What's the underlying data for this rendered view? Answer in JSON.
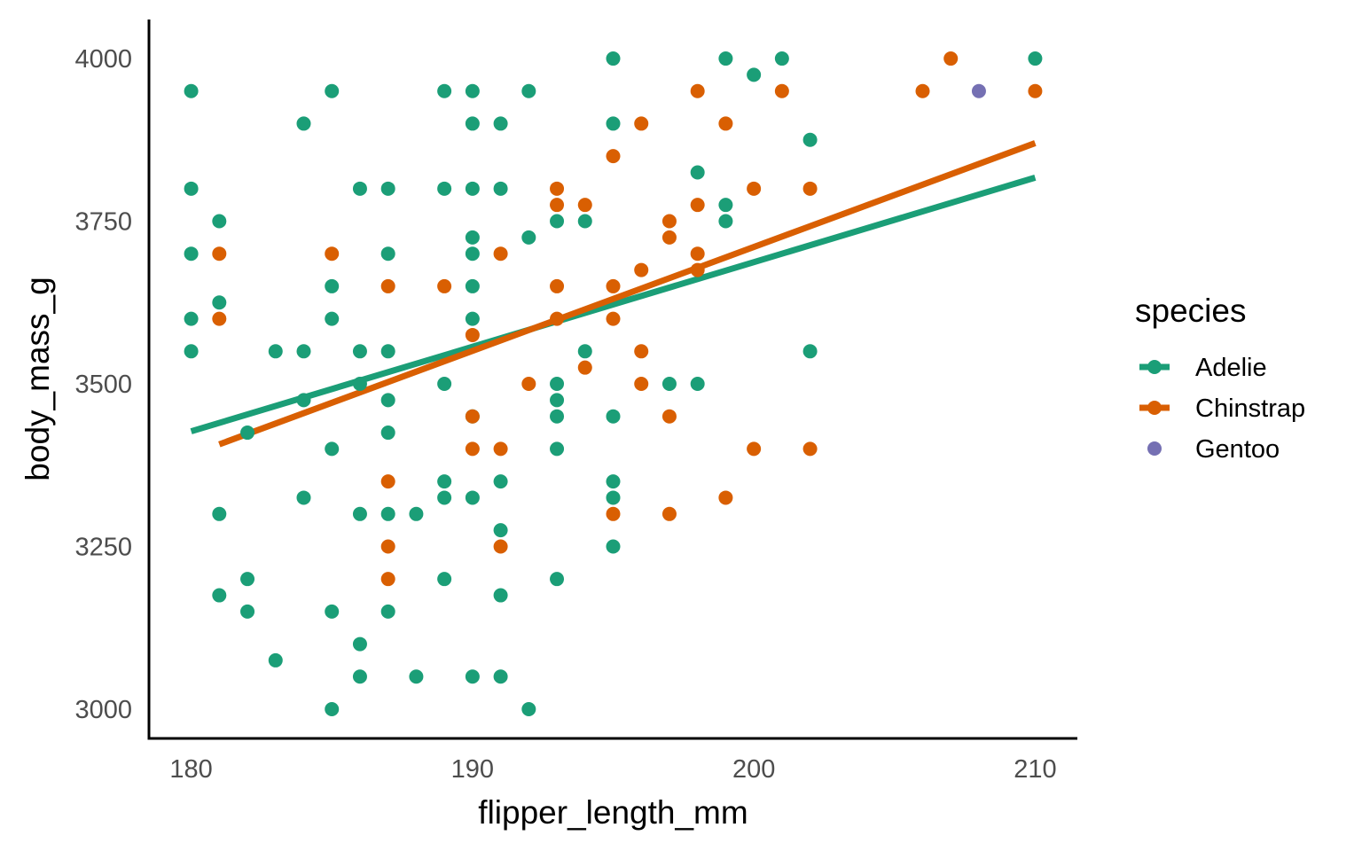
{
  "chart_data": {
    "type": "scatter",
    "xlabel": "flipper_length_mm",
    "ylabel": "body_mass_g",
    "xlim": [
      178.5,
      211.5
    ],
    "ylim": [
      2955,
      4060
    ],
    "x_ticks": [
      180,
      190,
      200,
      210
    ],
    "y_ticks": [
      3000,
      3250,
      3500,
      3750,
      4000
    ],
    "grid": false,
    "legend_position": "right",
    "legend": {
      "title": "species",
      "entries": [
        {
          "name": "Adelie",
          "color": "#1b9e77",
          "line": true
        },
        {
          "name": "Chinstrap",
          "color": "#d95f02",
          "line": true
        },
        {
          "name": "Gentoo",
          "color": "#7570b3",
          "line": false
        }
      ]
    },
    "series": [
      {
        "name": "Adelie",
        "color": "#1b9e77",
        "points": [
          [
            180,
            3950
          ],
          [
            180,
            3800
          ],
          [
            180,
            3700
          ],
          [
            180,
            3600
          ],
          [
            180,
            3550
          ],
          [
            181,
            3750
          ],
          [
            181,
            3625
          ],
          [
            181,
            3300
          ],
          [
            181,
            3175
          ],
          [
            182,
            3425
          ],
          [
            182,
            3200
          ],
          [
            182,
            3150
          ],
          [
            183,
            3550
          ],
          [
            183,
            3075
          ],
          [
            184,
            3900
          ],
          [
            184,
            3550
          ],
          [
            184,
            3475
          ],
          [
            184,
            3325
          ],
          [
            185,
            3950
          ],
          [
            185,
            3650
          ],
          [
            185,
            3600
          ],
          [
            185,
            3400
          ],
          [
            185,
            3150
          ],
          [
            185,
            3000
          ],
          [
            186,
            3800
          ],
          [
            186,
            3550
          ],
          [
            186,
            3500
          ],
          [
            186,
            3300
          ],
          [
            186,
            3100
          ],
          [
            186,
            3050
          ],
          [
            187,
            3800
          ],
          [
            187,
            3700
          ],
          [
            187,
            3550
          ],
          [
            187,
            3475
          ],
          [
            187,
            3425
          ],
          [
            187,
            3300
          ],
          [
            187,
            3150
          ],
          [
            188,
            3300
          ],
          [
            188,
            3050
          ],
          [
            189,
            3950
          ],
          [
            189,
            3800
          ],
          [
            189,
            3500
          ],
          [
            189,
            3350
          ],
          [
            189,
            3325
          ],
          [
            189,
            3200
          ],
          [
            190,
            3950
          ],
          [
            190,
            3900
          ],
          [
            190,
            3800
          ],
          [
            190,
            3725
          ],
          [
            190,
            3700
          ],
          [
            190,
            3650
          ],
          [
            190,
            3600
          ],
          [
            190,
            3450
          ],
          [
            190,
            3325
          ],
          [
            190,
            3050
          ],
          [
            191,
            3900
          ],
          [
            191,
            3800
          ],
          [
            191,
            3350
          ],
          [
            191,
            3275
          ],
          [
            191,
            3175
          ],
          [
            191,
            3050
          ],
          [
            192,
            3950
          ],
          [
            192,
            3725
          ],
          [
            192,
            3000
          ],
          [
            193,
            3750
          ],
          [
            193,
            3500
          ],
          [
            193,
            3475
          ],
          [
            193,
            3450
          ],
          [
            193,
            3400
          ],
          [
            193,
            3200
          ],
          [
            194,
            3750
          ],
          [
            194,
            3550
          ],
          [
            195,
            4000
          ],
          [
            195,
            3900
          ],
          [
            195,
            3450
          ],
          [
            195,
            3350
          ],
          [
            195,
            3325
          ],
          [
            195,
            3250
          ],
          [
            197,
            3500
          ],
          [
            198,
            3825
          ],
          [
            198,
            3500
          ],
          [
            199,
            4000
          ],
          [
            199,
            3775
          ],
          [
            199,
            3750
          ],
          [
            200,
            3975
          ],
          [
            201,
            4000
          ],
          [
            202,
            3875
          ],
          [
            202,
            3550
          ],
          [
            210,
            4000
          ]
        ],
        "fit": {
          "x": [
            180,
            210
          ],
          "y": [
            3427,
            3817
          ]
        }
      },
      {
        "name": "Chinstrap",
        "color": "#d95f02",
        "points": [
          [
            181,
            3700
          ],
          [
            181,
            3600
          ],
          [
            185,
            3700
          ],
          [
            187,
            3650
          ],
          [
            187,
            3350
          ],
          [
            187,
            3250
          ],
          [
            187,
            3200
          ],
          [
            189,
            3650
          ],
          [
            190,
            3575
          ],
          [
            190,
            3450
          ],
          [
            190,
            3400
          ],
          [
            191,
            3700
          ],
          [
            191,
            3400
          ],
          [
            191,
            3250
          ],
          [
            192,
            3500
          ],
          [
            193,
            3800
          ],
          [
            193,
            3775
          ],
          [
            193,
            3650
          ],
          [
            193,
            3600
          ],
          [
            194,
            3775
          ],
          [
            194,
            3525
          ],
          [
            195,
            3850
          ],
          [
            195,
            3650
          ],
          [
            195,
            3600
          ],
          [
            195,
            3300
          ],
          [
            196,
            3900
          ],
          [
            196,
            3675
          ],
          [
            196,
            3550
          ],
          [
            196,
            3500
          ],
          [
            197,
            3750
          ],
          [
            197,
            3725
          ],
          [
            197,
            3450
          ],
          [
            197,
            3300
          ],
          [
            198,
            3950
          ],
          [
            198,
            3775
          ],
          [
            198,
            3700
          ],
          [
            198,
            3675
          ],
          [
            199,
            3900
          ],
          [
            199,
            3325
          ],
          [
            200,
            3800
          ],
          [
            200,
            3400
          ],
          [
            201,
            3950
          ],
          [
            202,
            3800
          ],
          [
            202,
            3400
          ],
          [
            206,
            3950
          ],
          [
            207,
            4000
          ],
          [
            210,
            3950
          ]
        ],
        "fit": {
          "x": [
            181,
            210
          ],
          "y": [
            3407,
            3870
          ]
        }
      },
      {
        "name": "Gentoo",
        "color": "#7570b3",
        "points": [
          [
            208,
            3950
          ]
        ]
      }
    ]
  }
}
